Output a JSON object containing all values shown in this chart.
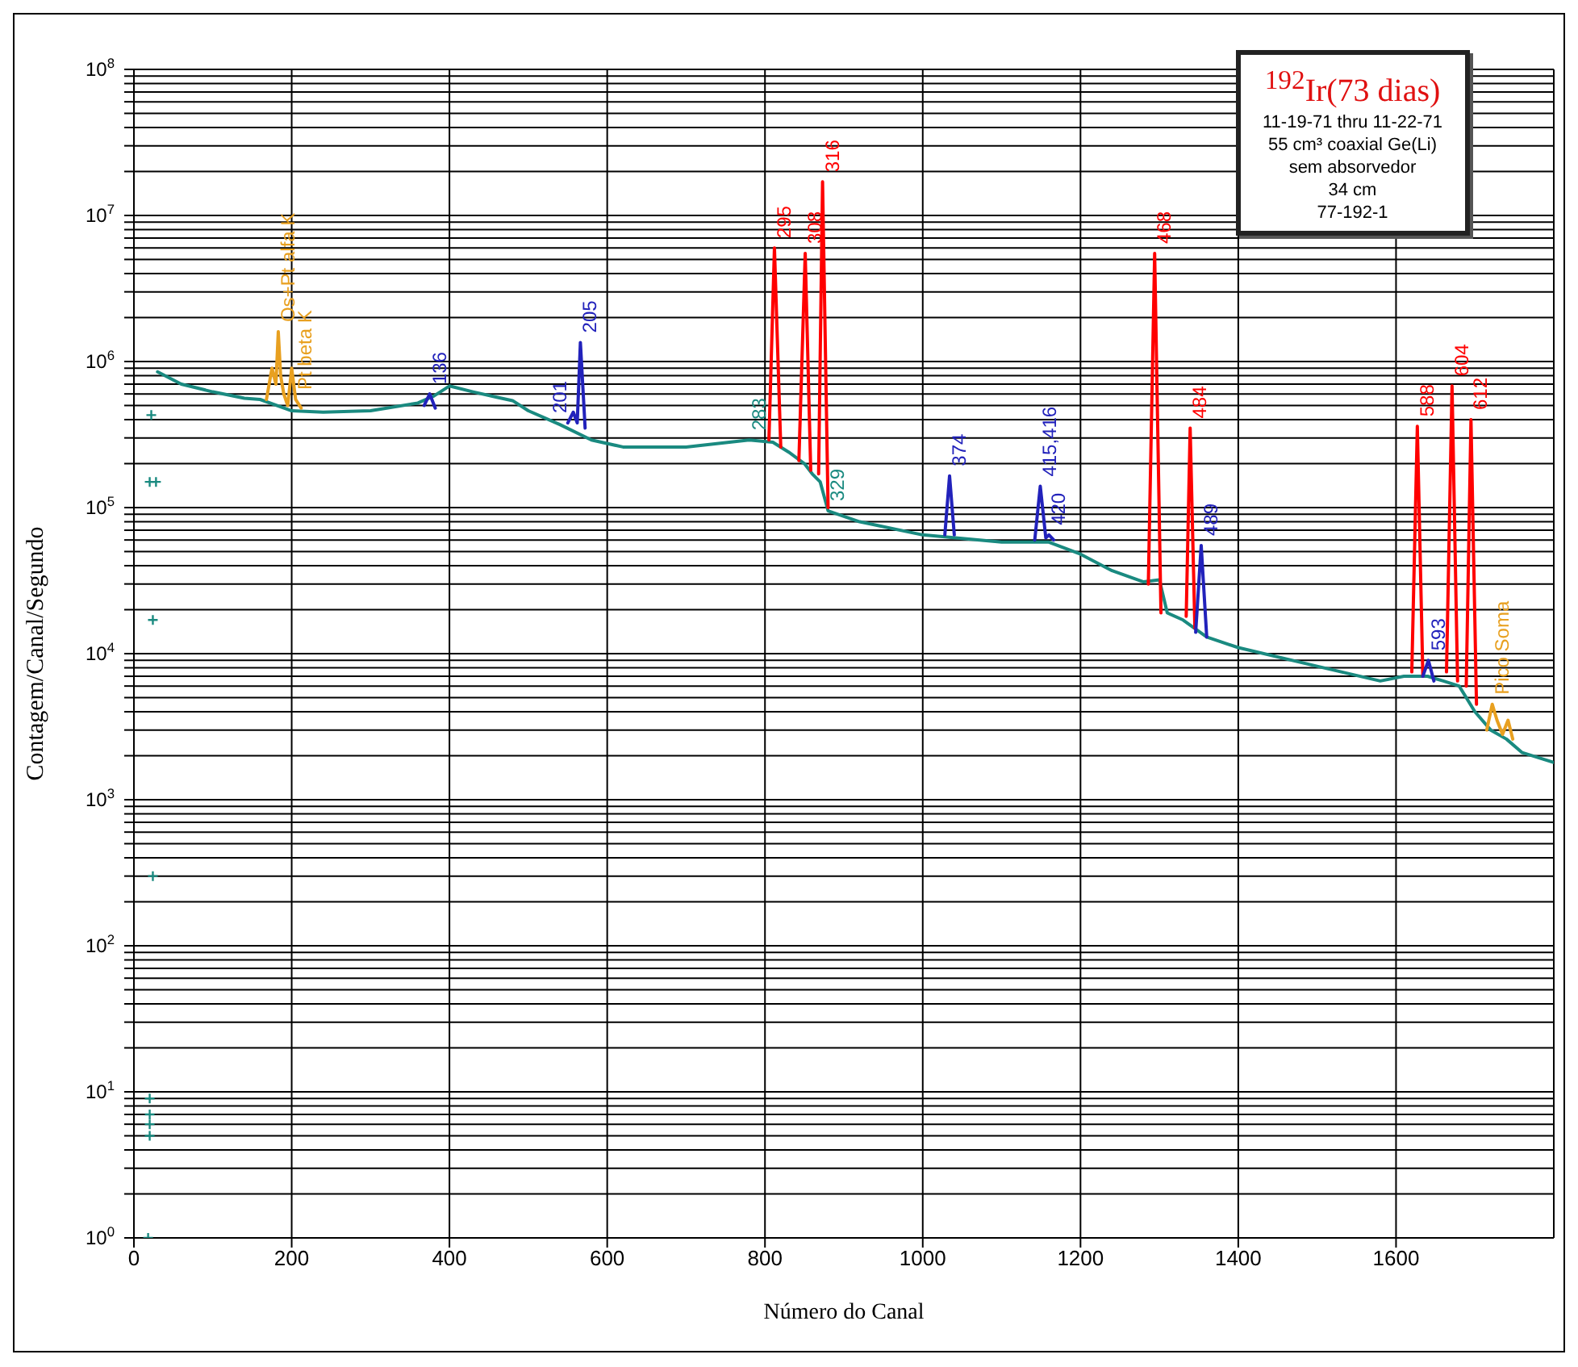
{
  "chart_data": {
    "type": "line",
    "title": "$^{192}$Ir(73 dias)",
    "annotations": [
      "11-19-71 thru 11-22-71",
      "55 cm³ coaxial Ge(Li)",
      "sem absorvedor",
      "34 cm",
      "77-192-1",
      {
        "text": "295",
        "x": 812,
        "y": 6000000
      },
      {
        "text": "308",
        "x": 851,
        "y": 5500000
      },
      {
        "text": "316",
        "x": 873,
        "y": 17000000
      },
      {
        "text": "468",
        "x": 1294,
        "y": 5500000
      },
      {
        "text": "484",
        "x": 1339,
        "y": 350000
      },
      {
        "text": "588",
        "x": 1627,
        "y": 360000
      },
      {
        "text": "604",
        "x": 1671,
        "y": 680000
      },
      {
        "text": "612",
        "x": 1695,
        "y": 400000
      },
      {
        "text": "136",
        "x": 375,
        "y": 600000
      },
      {
        "text": "201",
        "x": 550,
        "y": 380000
      },
      {
        "text": "205",
        "x": 566,
        "y": 1350000
      },
      {
        "text": "283",
        "x": 780,
        "y": 290000
      },
      {
        "text": "329",
        "x": 880,
        "y": 95000
      },
      {
        "text": "374",
        "x": 1034,
        "y": 165000
      },
      {
        "text": "415,416",
        "x": 1149,
        "y": 140000
      },
      {
        "text": "420",
        "x": 1160,
        "y": 65000
      },
      {
        "text": "489",
        "x": 1353,
        "y": 55000
      },
      {
        "text": "593",
        "x": 1641,
        "y": 9000
      },
      {
        "text": "Os+Pt alfa K",
        "x": 183,
        "y": 1600000
      },
      {
        "text": "Pt beta K",
        "x": 205,
        "y": 550000
      },
      {
        "text": "Pico Soma",
        "x": 1722,
        "y": 4500
      }
    ],
    "xlabel": "Número do Canal",
    "ylabel": "Contagem/Canal/Segundo",
    "log": "y",
    "grid": true,
    "xlim": [
      0,
      1800
    ],
    "xticks": [
      0,
      200,
      400,
      600,
      800,
      1000,
      1200,
      1400,
      1600
    ],
    "ylim": [
      1,
      100000000
    ],
    "yticks": [
      {
        "value": 1,
        "label": "10$^{0}$"
      },
      {
        "value": 2,
        "label": null
      },
      {
        "value": 3,
        "label": null
      },
      {
        "value": 4,
        "label": null
      },
      {
        "value": 5,
        "label": null
      },
      {
        "value": 6,
        "label": null
      },
      {
        "value": 7,
        "label": null
      },
      {
        "value": 8,
        "label": null
      },
      {
        "value": 9,
        "label": null
      },
      {
        "value": 10,
        "label": "10$^{1}$"
      },
      {
        "value": 20,
        "label": null
      },
      {
        "value": 30,
        "label": null
      },
      {
        "value": 40,
        "label": null
      },
      {
        "value": 50,
        "label": null
      },
      {
        "value": 60,
        "label": null
      },
      {
        "value": 70,
        "label": null
      },
      {
        "value": 80,
        "label": null
      },
      {
        "value": 90,
        "label": null
      },
      {
        "value": 100,
        "label": "10$^{2}$"
      },
      {
        "value": 200,
        "label": null
      },
      {
        "value": 300,
        "label": null
      },
      {
        "value": 400,
        "label": null
      },
      {
        "value": 500,
        "label": null
      },
      {
        "value": 600,
        "label": null
      },
      {
        "value": 700,
        "label": null
      },
      {
        "value": 800,
        "label": null
      },
      {
        "value": 900,
        "label": null
      },
      {
        "value": 1000,
        "label": "10$^{3}$"
      },
      {
        "value": 2000,
        "label": null
      },
      {
        "value": 3000,
        "label": null
      },
      {
        "value": 4000,
        "label": null
      },
      {
        "value": 5000,
        "label": null
      },
      {
        "value": 6000,
        "label": null
      },
      {
        "value": 7000,
        "label": null
      },
      {
        "value": 8000,
        "label": null
      },
      {
        "value": 9000,
        "label": null
      },
      {
        "value": 10000,
        "label": "10$^{4}$"
      },
      {
        "value": 20000,
        "label": null
      },
      {
        "value": 30000,
        "label": null
      },
      {
        "value": 40000,
        "label": null
      },
      {
        "value": 50000,
        "label": null
      },
      {
        "value": 60000,
        "label": null
      },
      {
        "value": 70000,
        "label": null
      },
      {
        "value": 80000,
        "label": null
      },
      {
        "value": 90000,
        "label": null
      },
      {
        "value": 100000,
        "label": "10$^{5}$"
      },
      {
        "value": 200000,
        "label": null
      },
      {
        "value": 300000,
        "label": null
      },
      {
        "value": 400000,
        "label": null
      },
      {
        "value": 500000,
        "label": null
      },
      {
        "value": 600000,
        "label": null
      },
      {
        "value": 700000,
        "label": null
      },
      {
        "value": 800000,
        "label": null
      },
      {
        "value": 900000,
        "label": null
      },
      {
        "value": 1000000,
        "label": "10$^{6}$"
      },
      {
        "value": 2000000,
        "label": null
      },
      {
        "value": 3000000,
        "label": null
      },
      {
        "value": 4000000,
        "label": null
      },
      {
        "value": 5000000,
        "label": null
      },
      {
        "value": 6000000,
        "label": null
      },
      {
        "value": 7000000,
        "label": null
      },
      {
        "value": 8000000,
        "label": null
      },
      {
        "value": 9000000,
        "label": null
      },
      {
        "value": 10000000,
        "label": "10$^{7}$"
      },
      {
        "value": 20000000,
        "label": null
      },
      {
        "value": 30000000,
        "label": null
      },
      {
        "value": 40000000,
        "label": null
      },
      {
        "value": 50000000,
        "label": null
      },
      {
        "value": 60000000,
        "label": null
      },
      {
        "value": 70000000,
        "label": null
      },
      {
        "value": 80000000,
        "label": null
      },
      {
        "value": 90000000,
        "label": null
      },
      {
        "value": 100000000,
        "label": "10$^{8}$"
      }
    ],
    "series": [
      {
        "color": "#1a8a80",
        "x": [
          30,
          60,
          100,
          140,
          160,
          200,
          240,
          300,
          360,
          380,
          400,
          430,
          460,
          480,
          500,
          540,
          580,
          620,
          700,
          780,
          810,
          830,
          850,
          860,
          870,
          880,
          920,
          1000,
          1100,
          1160,
          1200,
          1240,
          1280,
          1300,
          1310,
          1330,
          1360,
          1400,
          1500,
          1580,
          1610,
          1640,
          1660,
          1680,
          1700,
          1720,
          1740,
          1760,
          1800
        ],
        "values": [
          850000,
          700000,
          620000,
          560000,
          550000,
          460000,
          450000,
          460000,
          520000,
          580000,
          680000,
          620000,
          570000,
          540000,
          460000,
          370000,
          290000,
          260000,
          260000,
          290000,
          280000,
          240000,
          200000,
          170000,
          150000,
          95000,
          80000,
          65000,
          58000,
          58000,
          48000,
          37000,
          31000,
          32000,
          19000,
          17000,
          13000,
          11000,
          8200,
          6500,
          7000,
          7000,
          6500,
          6000,
          4000,
          3000,
          2600,
          2100,
          1800
        ]
      },
      {
        "type": "scatter",
        "color": "#1a8a80",
        "marker": "cross",
        "x": [
          18,
          20,
          20,
          20,
          20,
          20,
          22,
          24,
          24,
          28
        ],
        "values": [
          1,
          5,
          6,
          7,
          9,
          150000,
          430000,
          17000,
          300,
          150000
        ]
      },
      {
        "color": "#ff0000",
        "x": [
          805,
          812,
          820,
          830,
          843,
          851,
          858,
          865,
          868,
          873,
          880,
          890,
          1286,
          1294,
          1302,
          1315,
          1334,
          1339,
          1345,
          1360,
          1620,
          1627,
          1634,
          1645,
          1664,
          1671,
          1678,
          1685,
          1689,
          1695,
          1702
        ],
        "values": [
          290000,
          6000000,
          260000,
          null,
          210000,
          5500000,
          180000,
          null,
          170000,
          17000000,
          100000,
          null,
          30000,
          5500000,
          19000,
          null,
          18000,
          350000,
          15000,
          null,
          7500,
          360000,
          7000,
          null,
          7500,
          680000,
          6500,
          null,
          6000,
          400000,
          4500
        ]
      },
      {
        "color": "#2222bb",
        "x": [
          368,
          375,
          382,
          390,
          550,
          557,
          562,
          566,
          572,
          580,
          1028,
          1034,
          1040,
          1048,
          1142,
          1149,
          1156,
          1160,
          1166,
          1175,
          1346,
          1353,
          1360,
          1368,
          1634,
          1641,
          1648
        ],
        "values": [
          500000,
          600000,
          480000,
          null,
          380000,
          450000,
          380000,
          1350000,
          350000,
          null,
          65000,
          165000,
          65000,
          null,
          60000,
          140000,
          62000,
          65000,
          60000,
          null,
          14000,
          55000,
          13000,
          null,
          7000,
          9000,
          6500
        ]
      },
      {
        "color": "#e8a020",
        "x": [
          168,
          175,
          180,
          183,
          186,
          190,
          195,
          200,
          205,
          212,
          220,
          1715,
          1722,
          1728,
          1735,
          1742,
          1748
        ],
        "values": [
          550000,
          900000,
          700000,
          1600000,
          800000,
          600000,
          500000,
          900000,
          550000,
          480000,
          null,
          3000,
          4500,
          3500,
          2800,
          3500,
          2600
        ]
      }
    ]
  }
}
